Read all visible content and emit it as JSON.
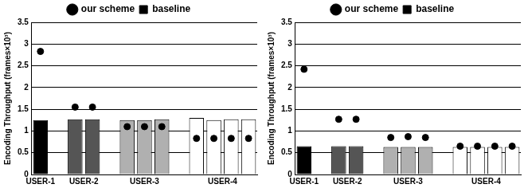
{
  "chart_data": [
    {
      "type": "bar",
      "y_label": "Encoding Throughput (frames×10³)",
      "categories": [
        "USER-1",
        "USER-2",
        "USER-3",
        "USER-4"
      ],
      "series": [
        {
          "name": "baseline",
          "type": "bar",
          "marker": "square",
          "colors": [
            "#000000",
            "#555555",
            "#b0b0b0",
            "#ffffff"
          ],
          "values": [
            [
              1.25
            ],
            [
              1.27,
              1.27
            ],
            [
              1.25,
              1.25,
              1.27
            ],
            [
              1.3,
              1.25,
              1.27,
              1.27
            ]
          ]
        },
        {
          "name": "our scheme",
          "type": "scatter",
          "marker": "circle",
          "color": "#000000",
          "values": [
            [
              2.83
            ],
            [
              1.55,
              1.55
            ],
            [
              1.1,
              1.1,
              1.1
            ],
            [
              0.83,
              0.83,
              0.83,
              0.83
            ]
          ]
        }
      ],
      "ylim": [
        0,
        3.5
      ],
      "yticks": [
        0,
        0.5,
        1,
        1.5,
        2,
        2.5,
        3,
        3.5
      ],
      "grid": true,
      "legend": "top"
    },
    {
      "type": "bar",
      "y_label": "Encoding Throughput (frames×10³)",
      "categories": [
        "USER-1",
        "USER-2",
        "USER-3",
        "USER-4"
      ],
      "series": [
        {
          "name": "baseline",
          "type": "bar",
          "marker": "square",
          "colors": [
            "#000000",
            "#555555",
            "#b0b0b0",
            "#ffffff"
          ],
          "values": [
            [
              0.65
            ],
            [
              0.65,
              0.65
            ],
            [
              0.63,
              0.63,
              0.63
            ],
            [
              0.63,
              0.63,
              0.63,
              0.63
            ]
          ]
        },
        {
          "name": "our scheme",
          "type": "scatter",
          "marker": "circle",
          "color": "#000000",
          "values": [
            [
              2.42
            ],
            [
              1.27,
              1.27
            ],
            [
              0.85,
              0.87,
              0.85
            ],
            [
              0.65,
              0.65,
              0.65,
              0.65
            ]
          ]
        }
      ],
      "ylim": [
        0,
        3.5
      ],
      "yticks": [
        0,
        0.5,
        1,
        1.5,
        2,
        2.5,
        3,
        3.5
      ],
      "grid": true,
      "legend": "top"
    }
  ]
}
